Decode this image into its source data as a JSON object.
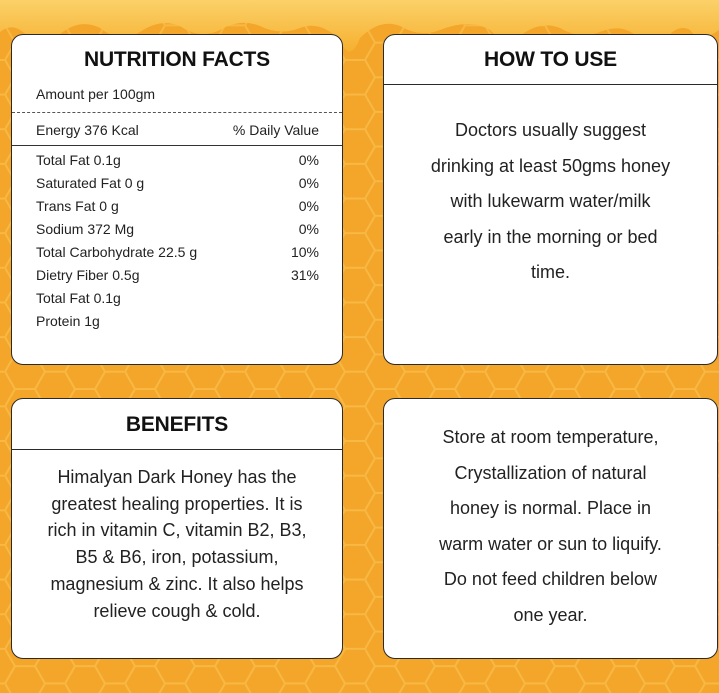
{
  "nutrition": {
    "title": "NUTRITION FACTS",
    "amount": "Amount per 100gm",
    "energy": "Energy 376 Kcal",
    "daily_value_header": "% Daily Value",
    "rows": [
      {
        "label": "Total Fat 0.1g",
        "value": "0%"
      },
      {
        "label": "Saturated Fat 0 g",
        "value": "0%"
      },
      {
        "label": "Trans Fat 0 g",
        "value": "0%"
      },
      {
        "label": "Sodium 372 Mg",
        "value": "0%"
      },
      {
        "label": "Total Carbohydrate 22.5 g",
        "value": "10%"
      },
      {
        "label": "Dietry Fiber 0.5g",
        "value": "31%"
      },
      {
        "label": "Total Fat 0.1g",
        "value": ""
      },
      {
        "label": "Protein 1g",
        "value": ""
      }
    ]
  },
  "how_to_use": {
    "title": "HOW TO USE",
    "lines": [
      "Doctors usually suggest",
      "drinking at least 50gms honey",
      "with lukewarm water/milk",
      "early in the morning or bed",
      "time."
    ]
  },
  "benefits": {
    "title": "BENEFITS",
    "lines": [
      "Himalyan Dark Honey has the",
      "greatest healing properties. It is",
      "rich in vitamin C, vitamin B2, B3,",
      "B5 & B6, iron, potassium,",
      "magnesium &  zinc. It also helps",
      "relieve cough & cold."
    ]
  },
  "storage": {
    "lines": [
      "Store at room temperature,",
      "Crystallization of natural",
      "honey is normal. Place in",
      "warm water or sun to liquify.",
      "Do not feed children below",
      "one year."
    ]
  },
  "colors": {
    "background": "#F4A62A",
    "honey_drip": "#F7B733",
    "card": "#FFFFFF",
    "border": "#2A2A2A"
  }
}
